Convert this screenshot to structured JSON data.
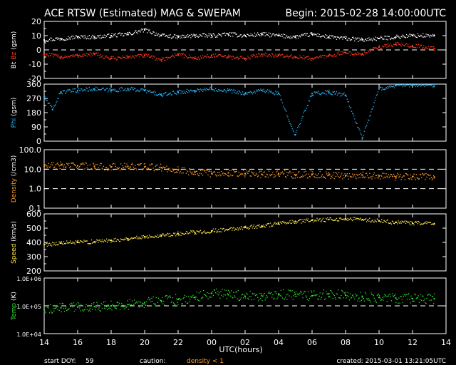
{
  "header": {
    "title": "ACE RTSW (Estimated) MAG & SWEPAM",
    "begin": "Begin: 2015-02-28 14:00:00UTC"
  },
  "footer": {
    "start_doy_label": "start DOY:",
    "start_doy_value": "59",
    "caution_label": "caution:",
    "density_note": "density < 1",
    "created": "created: 2015-03-01 13:21:05UTC"
  },
  "colors": {
    "background": "#000000",
    "axes": "#ffffff",
    "bt": "#ffffff",
    "bz": "#ff3b1f",
    "phi": "#29b6f6",
    "density": "#ff9f2a",
    "speed": "#ffe84a",
    "temp": "#2ee02e"
  },
  "chart_data": [
    {
      "id": "mag",
      "type": "scatter",
      "ylabel_parts": [
        "Bt",
        "Bz",
        "(gsm)"
      ],
      "ylim": [
        -20,
        20
      ],
      "yticks": [
        -20,
        -10,
        0,
        10,
        20
      ],
      "ytick_labels": [
        "-20",
        "-10",
        "0",
        "10",
        "20"
      ],
      "dashed_lines": [
        0
      ],
      "series": [
        {
          "name": "Bt",
          "color": "#ffffff",
          "x": [
            14,
            15,
            16,
            17,
            18,
            19,
            20,
            21,
            22,
            23,
            24,
            25,
            26,
            27,
            28,
            29,
            30,
            31,
            32,
            33,
            34,
            35,
            36,
            37.3
          ],
          "y": [
            7,
            8,
            9,
            9,
            10,
            11,
            14,
            10,
            9,
            10,
            10,
            11,
            10,
            11,
            10,
            9,
            11,
            9,
            8,
            7,
            8,
            9,
            10,
            10
          ]
        },
        {
          "name": "Bz",
          "color": "#ff3b1f",
          "x": [
            14,
            15,
            16,
            17,
            18,
            19,
            20,
            21,
            22,
            23,
            24,
            25,
            26,
            27,
            28,
            29,
            30,
            31,
            32,
            33,
            34,
            35,
            36,
            37.3
          ],
          "y": [
            -3,
            -5,
            -4,
            -3,
            -6,
            -5,
            -4,
            -7,
            -3,
            -6,
            -4,
            -5,
            -6,
            -3,
            -4,
            -5,
            -6,
            -4,
            -2,
            -3,
            2,
            4,
            3,
            1
          ]
        }
      ]
    },
    {
      "id": "phi",
      "type": "scatter",
      "ylabel_parts": [
        "Phi",
        "(gsm)"
      ],
      "ylim": [
        0,
        360
      ],
      "yticks": [
        0,
        90,
        180,
        270,
        360
      ],
      "ytick_labels": [
        "0",
        "90",
        "180",
        "270",
        "360"
      ],
      "dashed_lines": [],
      "series": [
        {
          "name": "Phi",
          "color": "#29b6f6",
          "x": [
            14,
            14.5,
            15,
            16,
            17,
            18,
            19,
            20,
            21,
            22,
            23,
            24,
            25,
            26,
            27,
            28,
            29,
            30,
            31,
            32,
            33,
            34,
            35,
            36,
            37.3
          ],
          "y": [
            280,
            200,
            310,
            320,
            330,
            320,
            330,
            320,
            290,
            310,
            320,
            330,
            320,
            300,
            320,
            300,
            40,
            300,
            310,
            290,
            20,
            330,
            350,
            355,
            355
          ]
        }
      ]
    },
    {
      "id": "density",
      "type": "scatter",
      "scale": "log",
      "ylabel_parts": [
        "Density",
        "(/cm3)"
      ],
      "ylim": [
        0.1,
        100
      ],
      "yticks": [
        0.1,
        1,
        10,
        100
      ],
      "ytick_labels": [
        "0.1",
        "1.0",
        "10.0",
        "100.0"
      ],
      "dashed_lines": [
        1,
        10
      ],
      "series": [
        {
          "name": "Density",
          "color": "#ff9f2a",
          "x": [
            14,
            15,
            16,
            17,
            18,
            19,
            20,
            21,
            22,
            23,
            24,
            25,
            26,
            27,
            28,
            29,
            30,
            31,
            32,
            33,
            34,
            35,
            36,
            37.3
          ],
          "y": [
            14,
            16,
            15,
            14,
            13,
            14,
            13,
            12,
            9,
            7,
            6,
            6.5,
            6,
            5.5,
            6,
            5,
            5.5,
            5,
            4.5,
            5,
            4.5,
            4,
            4.2,
            4
          ]
        }
      ]
    },
    {
      "id": "speed",
      "type": "scatter",
      "ylabel_parts": [
        "Speed",
        "(km/s)"
      ],
      "ylim": [
        200,
        600
      ],
      "yticks": [
        200,
        300,
        400,
        500,
        600
      ],
      "ytick_labels": [
        "200",
        "300",
        "400",
        "500",
        "600"
      ],
      "dashed_lines": [],
      "series": [
        {
          "name": "Speed",
          "color": "#ffe84a",
          "x": [
            14,
            15,
            16,
            17,
            18,
            19,
            20,
            21,
            22,
            23,
            24,
            25,
            26,
            27,
            28,
            29,
            30,
            31,
            32,
            33,
            34,
            35,
            36,
            37.3
          ],
          "y": [
            385,
            395,
            400,
            405,
            415,
            425,
            440,
            450,
            460,
            470,
            480,
            490,
            505,
            515,
            530,
            545,
            555,
            560,
            565,
            560,
            550,
            540,
            535,
            530
          ]
        }
      ]
    },
    {
      "id": "temp",
      "type": "scatter",
      "scale": "log",
      "ylabel_parts": [
        "Temp",
        "(K)"
      ],
      "ylim": [
        10000,
        1000000
      ],
      "yticks": [
        10000,
        100000,
        1000000
      ],
      "ytick_labels": [
        "1.0E+04",
        "1.0E+05",
        "1.0E+06"
      ],
      "dashed_lines": [
        100000
      ],
      "series": [
        {
          "name": "Temp",
          "color": "#2ee02e",
          "x": [
            14,
            15,
            16,
            17,
            18,
            19,
            20,
            21,
            22,
            23,
            24,
            25,
            26,
            27,
            28,
            29,
            30,
            31,
            32,
            33,
            34,
            35,
            36,
            37.3
          ],
          "y": [
            75000,
            85000,
            90000,
            95000,
            100000,
            110000,
            130000,
            150000,
            170000,
            200000,
            280000,
            250000,
            220000,
            230000,
            250000,
            260000,
            230000,
            270000,
            240000,
            210000,
            200000,
            190000,
            180000,
            180000
          ]
        }
      ]
    }
  ],
  "xaxis": {
    "label": "UTC(hours)",
    "range": [
      14,
      38
    ],
    "ticks": [
      14,
      16,
      18,
      20,
      22,
      24,
      26,
      28,
      30,
      32,
      34,
      36,
      38
    ],
    "tick_labels": [
      "14",
      "16",
      "18",
      "20",
      "22",
      "00",
      "02",
      "04",
      "06",
      "08",
      "10",
      "12",
      "14"
    ]
  }
}
